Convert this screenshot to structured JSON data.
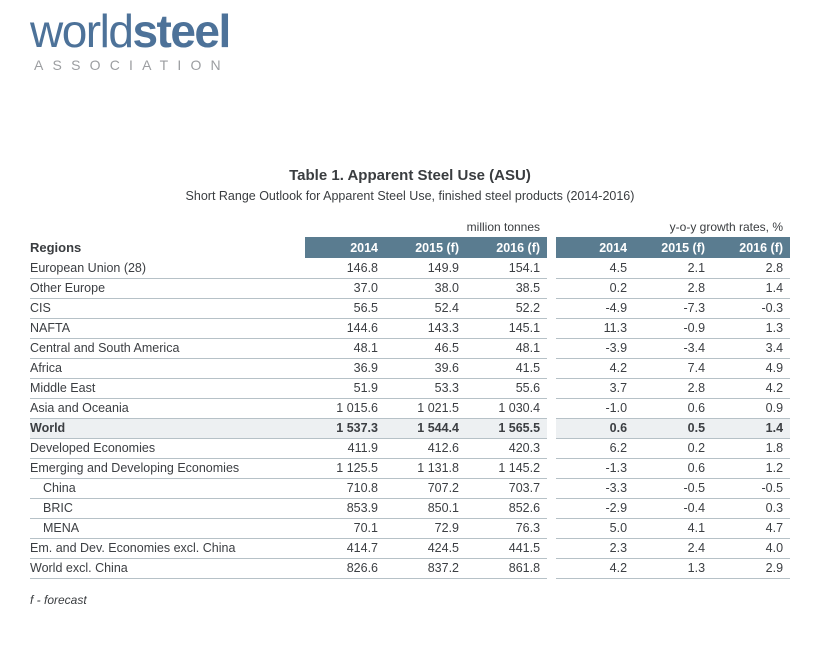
{
  "logo": {
    "word1": "world",
    "word2": "steel",
    "subtitle": "ASSOCIATION"
  },
  "title": "Table 1. Apparent Steel Use (ASU)",
  "subtitle": "Short Range Outlook for Apparent Steel Use, finished steel products (2014-2016)",
  "table": {
    "region_header": "Regions",
    "group1_label": "million tonnes",
    "group2_label": "y-o-y growth rates, %",
    "year_headers": [
      "2014",
      "2015 (f)",
      "2016 (f)"
    ],
    "rows": [
      {
        "region": "European Union (28)",
        "tonnes": [
          "146.8",
          "149.9",
          "154.1"
        ],
        "growth": [
          "4.5",
          "2.1",
          "2.8"
        ],
        "indent": false,
        "shaded": false
      },
      {
        "region": "Other Europe",
        "tonnes": [
          "37.0",
          "38.0",
          "38.5"
        ],
        "growth": [
          "0.2",
          "2.8",
          "1.4"
        ],
        "indent": false,
        "shaded": false
      },
      {
        "region": "CIS",
        "tonnes": [
          "56.5",
          "52.4",
          "52.2"
        ],
        "growth": [
          "-4.9",
          "-7.3",
          "-0.3"
        ],
        "indent": false,
        "shaded": false
      },
      {
        "region": "NAFTA",
        "tonnes": [
          "144.6",
          "143.3",
          "145.1"
        ],
        "growth": [
          "11.3",
          "-0.9",
          "1.3"
        ],
        "indent": false,
        "shaded": false
      },
      {
        "region": "Central and South America",
        "tonnes": [
          "48.1",
          "46.5",
          "48.1"
        ],
        "growth": [
          "-3.9",
          "-3.4",
          "3.4"
        ],
        "indent": false,
        "shaded": false
      },
      {
        "region": "Africa",
        "tonnes": [
          "36.9",
          "39.6",
          "41.5"
        ],
        "growth": [
          "4.2",
          "7.4",
          "4.9"
        ],
        "indent": false,
        "shaded": false
      },
      {
        "region": "Middle East",
        "tonnes": [
          "51.9",
          "53.3",
          "55.6"
        ],
        "growth": [
          "3.7",
          "2.8",
          "4.2"
        ],
        "indent": false,
        "shaded": false
      },
      {
        "region": "Asia and Oceania",
        "tonnes": [
          "1 015.6",
          "1 021.5",
          "1 030.4"
        ],
        "growth": [
          "-1.0",
          "0.6",
          "0.9"
        ],
        "indent": false,
        "shaded": false
      },
      {
        "region": "World",
        "tonnes": [
          "1 537.3",
          "1 544.4",
          "1 565.5"
        ],
        "growth": [
          "0.6",
          "0.5",
          "1.4"
        ],
        "indent": false,
        "shaded": true
      },
      {
        "region": "Developed Economies",
        "tonnes": [
          "411.9",
          "412.6",
          "420.3"
        ],
        "growth": [
          "6.2",
          "0.2",
          "1.8"
        ],
        "indent": false,
        "shaded": false
      },
      {
        "region": "Emerging and Developing Economies",
        "tonnes": [
          "1 125.5",
          "1 131.8",
          "1 145.2"
        ],
        "growth": [
          "-1.3",
          "0.6",
          "1.2"
        ],
        "indent": false,
        "shaded": false
      },
      {
        "region": "China",
        "tonnes": [
          "710.8",
          "707.2",
          "703.7"
        ],
        "growth": [
          "-3.3",
          "-0.5",
          "-0.5"
        ],
        "indent": true,
        "shaded": false
      },
      {
        "region": "BRIC",
        "tonnes": [
          "853.9",
          "850.1",
          "852.6"
        ],
        "growth": [
          "-2.9",
          "-0.4",
          "0.3"
        ],
        "indent": true,
        "shaded": false
      },
      {
        "region": "MENA",
        "tonnes": [
          "70.1",
          "72.9",
          "76.3"
        ],
        "growth": [
          "5.0",
          "4.1",
          "4.7"
        ],
        "indent": true,
        "shaded": false
      },
      {
        "region": "Em. and Dev. Economies excl. China",
        "tonnes": [
          "414.7",
          "424.5",
          "441.5"
        ],
        "growth": [
          "2.3",
          "2.4",
          "4.0"
        ],
        "indent": false,
        "shaded": false
      },
      {
        "region": "World excl. China",
        "tonnes": [
          "826.6",
          "837.2",
          "861.8"
        ],
        "growth": [
          "4.2",
          "1.3",
          "2.9"
        ],
        "indent": false,
        "shaded": false
      }
    ]
  },
  "footnote": "f - forecast",
  "colors": {
    "header_bg": "#5a7c90",
    "shaded_row_bg": "#edf0f2",
    "logo_blue": "#4d7299",
    "divider": "#b6c1c7"
  }
}
